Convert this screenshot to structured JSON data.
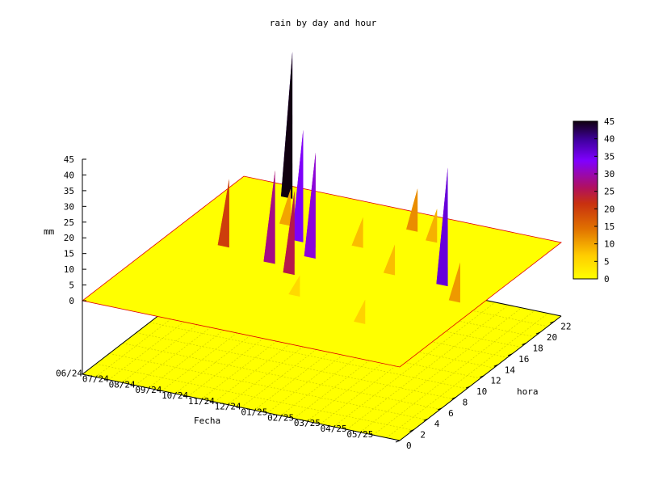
{
  "chart_data": {
    "type": "surface3d",
    "title": "rain by day and hour",
    "xlabel": "Fecha",
    "ylabel": "hora",
    "zlabel": "mm",
    "x_ticks": [
      "06/24",
      "07/24",
      "08/24",
      "09/24",
      "10/24",
      "11/24",
      "12/24",
      "01/25",
      "02/25",
      "03/25",
      "04/25",
      "05/25"
    ],
    "y_ticks": [
      "0",
      "2",
      "4",
      "6",
      "8",
      "10",
      "12",
      "14",
      "16",
      "18",
      "20",
      "22"
    ],
    "z_ticks": [
      "0",
      "5",
      "10",
      "15",
      "20",
      "25",
      "30",
      "35",
      "40",
      "45"
    ],
    "zlim": [
      0,
      45
    ],
    "ylim": [
      0,
      23
    ],
    "colorbar": {
      "ticks": [
        "0",
        "5",
        "10",
        "15",
        "20",
        "25",
        "30",
        "35",
        "40",
        "45"
      ],
      "range": [
        0,
        45
      ]
    },
    "peaks": [
      {
        "date": "08/24",
        "hour": 22,
        "value": 45
      },
      {
        "date": "08/24",
        "hour": 13,
        "value": 20
      },
      {
        "date": "09/24",
        "hour": 18,
        "value": 10
      },
      {
        "date": "10/24",
        "hour": 16,
        "value": 34
      },
      {
        "date": "10/24",
        "hour": 12,
        "value": 28
      },
      {
        "date": "11/24",
        "hour": 14,
        "value": 32
      },
      {
        "date": "11/24",
        "hour": 11,
        "value": 25
      },
      {
        "date": "12/24",
        "hour": 17,
        "value": 8
      },
      {
        "date": "01/25",
        "hour": 21,
        "value": 12
      },
      {
        "date": "02/25",
        "hour": 20,
        "value": 9
      },
      {
        "date": "04/25",
        "hour": 14,
        "value": 36
      },
      {
        "date": "05/25",
        "hour": 12,
        "value": 11
      },
      {
        "date": "02/25",
        "hour": 14,
        "value": 8
      },
      {
        "date": "12/24",
        "hour": 8,
        "value": 5
      },
      {
        "date": "03/25",
        "hour": 6,
        "value": 6
      }
    ]
  }
}
